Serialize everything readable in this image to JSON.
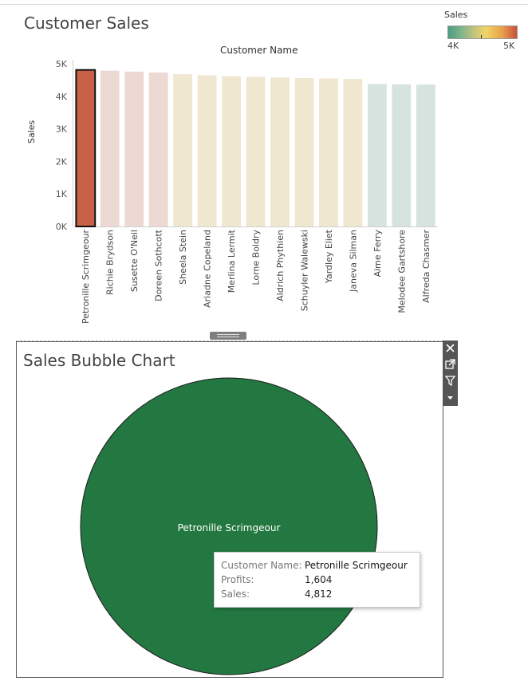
{
  "dashboard": {
    "customer_sales_title": "Customer Sales",
    "bubble_title": "Sales Bubble Chart",
    "legend": {
      "title": "Sales",
      "min_label": "4K",
      "max_label": "5K"
    }
  },
  "chart_data": [
    {
      "type": "bar",
      "title": "Customer Sales",
      "xlabel": "Customer Name",
      "ylabel": "Sales",
      "categories": [
        "Petronille Scrimgeour",
        "Richie Brydson",
        "Susette O'Neil",
        "Doreen Sothcott",
        "Sheela Stein",
        "Ariadne Copeland",
        "Merlina Lermit",
        "Lorne Boldry",
        "Aldrich Phythien",
        "Schuyler Walewski",
        "Yardley Eliet",
        "Janeva Silman",
        "Aime Ferry",
        "Melodee Gartshore",
        "Alfreda Chasmer"
      ],
      "values": [
        4812,
        4790,
        4760,
        4730,
        4680,
        4650,
        4620,
        4600,
        4580,
        4560,
        4550,
        4530,
        4380,
        4370,
        4360
      ],
      "yticks": [
        "0K",
        "1K",
        "2K",
        "3K",
        "4K",
        "5K"
      ],
      "ylim": [
        0,
        5000
      ],
      "selected": "Petronille Scrimgeour",
      "colors": {
        "selected": "#c96148",
        "high": "#ecd9d4",
        "mid": "#efe7cf",
        "low": "#d7e3df"
      }
    },
    {
      "type": "scatter",
      "title": "Sales Bubble Chart",
      "points": [
        {
          "label": "Petronille Scrimgeour",
          "size_value": 4812,
          "color": "#237841"
        }
      ]
    }
  ],
  "tooltip": {
    "customer_key": "Customer Name:",
    "customer_value": "Petronille Scrimgeour",
    "profits_key": "Profits:",
    "profits_value": "1,604",
    "sales_key": "Sales:",
    "sales_value": "4,812"
  },
  "toolbar": {
    "close_icon": "close-icon",
    "popout_icon": "popout-icon",
    "filter_icon": "filter-icon",
    "more_icon": "chevron-down-icon"
  }
}
